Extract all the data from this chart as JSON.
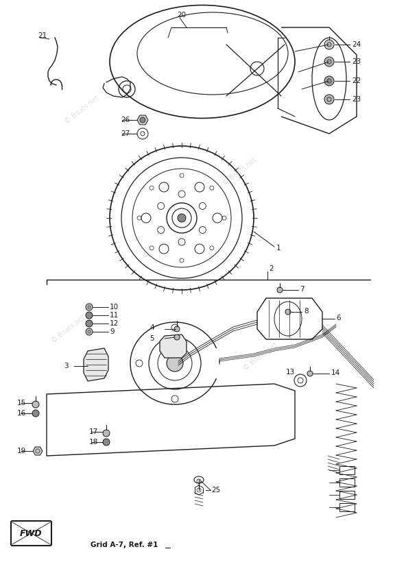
{
  "fig_width": 5.92,
  "fig_height": 8.52,
  "dpi": 100,
  "lc": "#1a1a1a",
  "bg": "#ffffff",
  "watermark": "© Boats.net",
  "grid_ref": "Grid A-7, Ref. #1",
  "label_fontsize": 7.5
}
